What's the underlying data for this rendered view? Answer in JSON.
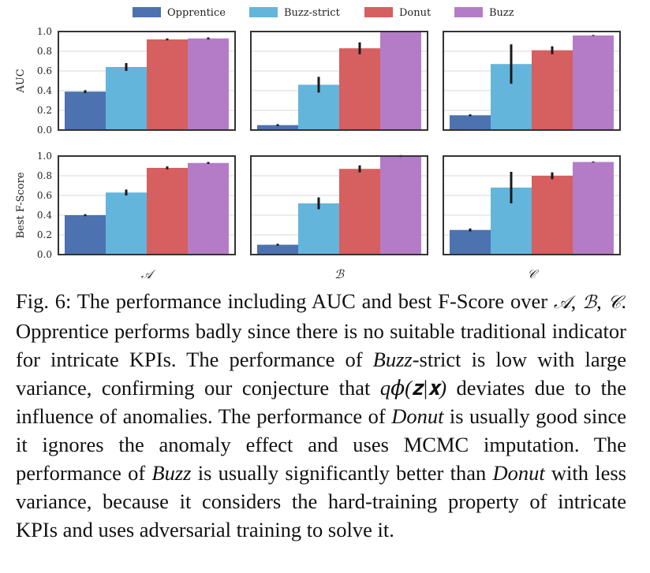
{
  "chart_data": {
    "type": "bar",
    "legend_placement": "top",
    "series": [
      {
        "name": "Opprentice",
        "color": "#4c72b0"
      },
      {
        "name": "Buzz-strict",
        "color": "#64b5dc"
      },
      {
        "name": "Donut",
        "color": "#d65f5f"
      },
      {
        "name": "Buzz",
        "color": "#b47cc7"
      }
    ],
    "datasets": [
      "𝒜",
      "ℬ",
      "𝒞"
    ],
    "ylim": [
      0,
      1.0
    ],
    "yticks": [
      "0.0",
      "0.2",
      "0.4",
      "0.6",
      "0.8",
      "1.0"
    ],
    "rows": [
      {
        "ylabel": "AUC",
        "values": [
          [
            0.39,
            0.64,
            0.92,
            0.93
          ],
          [
            0.05,
            0.46,
            0.83,
            1.0
          ],
          [
            0.15,
            0.67,
            0.81,
            0.96
          ]
        ],
        "errors": [
          [
            0.015,
            0.04,
            0.01,
            0.01
          ],
          [
            0.01,
            0.08,
            0.06,
            0.0
          ],
          [
            0.01,
            0.2,
            0.04,
            0.005
          ]
        ]
      },
      {
        "ylabel": "Best F-Score",
        "values": [
          [
            0.4,
            0.63,
            0.88,
            0.93
          ],
          [
            0.1,
            0.52,
            0.87,
            1.0
          ],
          [
            0.25,
            0.68,
            0.8,
            0.94
          ]
        ],
        "errors": [
          [
            0.01,
            0.03,
            0.015,
            0.01
          ],
          [
            0.01,
            0.06,
            0.035,
            0.01
          ],
          [
            0.015,
            0.16,
            0.035,
            0.005
          ]
        ]
      }
    ]
  },
  "caption": {
    "fig_label": "Fig. 6:",
    "t1": " The performance including AUC and best F-Score over ",
    "setA": "𝒜",
    "sep1": ", ",
    "setB": "ℬ",
    "sep2": ", ",
    "setC": "𝒞",
    "t2": ". Opprentice performs badly since there is no suitable traditional indicator for intricate KPIs. The performance of ",
    "buzz_strict_em": "Buzz",
    "t3": "-strict is low with large variance, confirming our conjecture that ",
    "formula": "q𝜙(𝐳|𝐱)",
    "t4": " deviates due to the influence of anomalies. The performance of ",
    "donut_em": "Donut",
    "t5": " is usually good since it ignores the anomaly effect and uses MCMC imputation. The performance of ",
    "buzz_em": "Buzz",
    "t6": " is usually significantly better than ",
    "donut_em2": "Donut",
    "t7": " with less variance, because it considers the hard-training property of intricate KPIs and uses adversarial training to solve it."
  }
}
